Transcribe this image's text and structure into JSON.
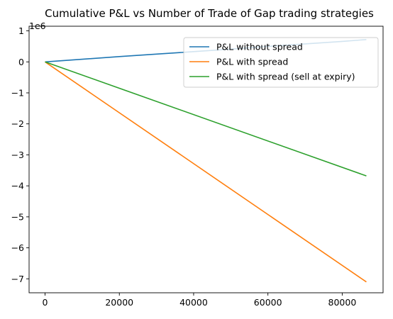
{
  "chart_data": {
    "type": "line",
    "title": "Cumulative P&L vs Number of Trade of Gap trading strategies",
    "xlabel": "",
    "ylabel": "",
    "y_offset_label": "1e6",
    "xlim": [
      -4300,
      91000
    ],
    "ylim": [
      -7.45,
      1.15
    ],
    "x_ticks": [
      0,
      20000,
      40000,
      60000,
      80000
    ],
    "x_tick_labels": [
      "0",
      "20000",
      "40000",
      "60000",
      "80000"
    ],
    "y_ticks": [
      1,
      0,
      -1,
      -2,
      -3,
      -4,
      -5,
      -6,
      -7
    ],
    "y_tick_labels": [
      "1",
      "0",
      "−1",
      "−2",
      "−3",
      "−4",
      "−5",
      "−6",
      "−7"
    ],
    "grid": false,
    "legend_position": "top-right",
    "series": [
      {
        "name": "P&L without spread",
        "color": "#1f77b4",
        "x": [
          0,
          10000,
          20000,
          30000,
          40000,
          50000,
          60000,
          70000,
          80000,
          86500
        ],
        "y": [
          0,
          0.085,
          0.17,
          0.25,
          0.33,
          0.41,
          0.5,
          0.58,
          0.66,
          0.72
        ]
      },
      {
        "name": "P&L with spread",
        "color": "#ff7f0e",
        "x": [
          0,
          86500
        ],
        "y": [
          0,
          -7.1
        ]
      },
      {
        "name": "P&L with spread (sell at expiry)",
        "color": "#2ca02c",
        "x": [
          0,
          86500
        ],
        "y": [
          0,
          -3.68
        ]
      }
    ]
  }
}
